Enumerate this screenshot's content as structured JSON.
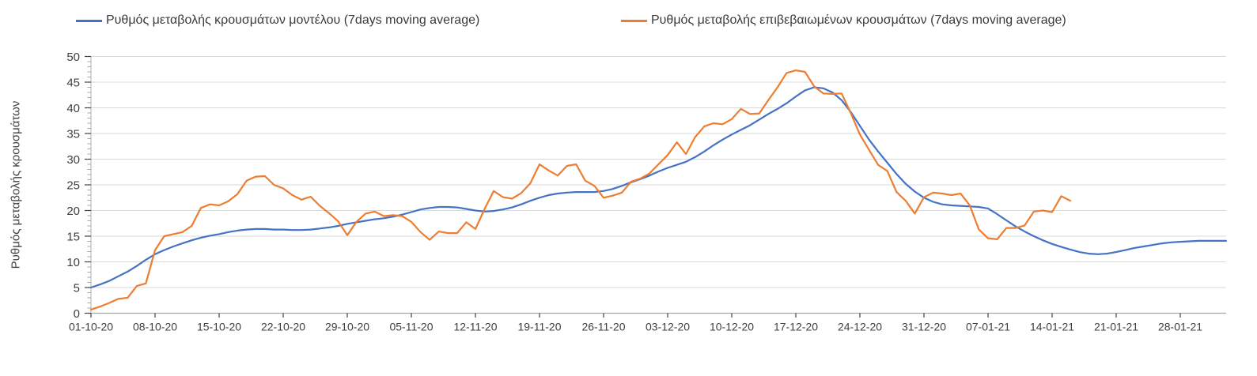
{
  "colors": {
    "model_line": "#4472c4",
    "confirmed_line": "#ed7d31",
    "gridline": "#d9d9d9",
    "axis_line": "#a6a6a6",
    "y_axis_line": "#bfbfbf",
    "major_tick": "#404040",
    "minor_tick": "#a6a6a6",
    "label_text": "#3f3f3f"
  },
  "y_axis": {
    "title": "Ρυθμός μεταβολής κρουσμάτων",
    "tick_labels": [
      "0",
      "5",
      "10",
      "15",
      "20",
      "25",
      "30",
      "35",
      "40",
      "45",
      "50"
    ]
  },
  "x_axis": {
    "tick_labels": [
      "01-10-20",
      "08-10-20",
      "15-10-20",
      "22-10-20",
      "29-10-20",
      "05-11-20",
      "12-11-20",
      "19-11-20",
      "26-11-20",
      "03-12-20",
      "10-12-20",
      "17-12-20",
      "24-12-20",
      "31-12-20",
      "07-01-21",
      "14-01-21",
      "21-01-21",
      "28-01-21"
    ]
  },
  "chart_data": {
    "type": "line",
    "title": "",
    "xlabel": "",
    "ylabel": "Ρυθμός μεταβολής κρουσμάτων",
    "ylim": [
      0,
      50
    ],
    "y_major_step": 5,
    "y_minor_step": 1,
    "grid": "horizontal",
    "legend_position": "top",
    "x_unit": "daily points starting 01-10-2020",
    "x_tick_interval_days": 7,
    "x_domain_days": [
      0,
      124
    ],
    "series": [
      {
        "name": "Ρυθμός μεταβολής κρουσμάτων μοντέλου (7days moving average)",
        "data_name": "model-line",
        "color": "#4472c4",
        "start_date": "01-10-20",
        "values": [
          5.0,
          5.6,
          6.3,
          7.2,
          8.1,
          9.2,
          10.4,
          11.5,
          12.3,
          13.0,
          13.6,
          14.2,
          14.7,
          15.1,
          15.4,
          15.8,
          16.1,
          16.3,
          16.4,
          16.4,
          16.3,
          16.3,
          16.2,
          16.2,
          16.3,
          16.5,
          16.7,
          17.0,
          17.4,
          17.7,
          18.0,
          18.3,
          18.5,
          18.8,
          19.2,
          19.7,
          20.2,
          20.5,
          20.7,
          20.7,
          20.6,
          20.3,
          20.0,
          19.8,
          19.9,
          20.2,
          20.6,
          21.2,
          21.9,
          22.5,
          23.0,
          23.3,
          23.5,
          23.6,
          23.6,
          23.6,
          23.8,
          24.2,
          24.8,
          25.5,
          26.1,
          26.8,
          27.6,
          28.3,
          28.9,
          29.5,
          30.4,
          31.5,
          32.7,
          33.8,
          34.8,
          35.7,
          36.6,
          37.7,
          38.8,
          39.8,
          40.9,
          42.2,
          43.4,
          44.0,
          43.8,
          43.0,
          41.5,
          39.2,
          36.5,
          33.8,
          31.5,
          29.3,
          27.1,
          25.2,
          23.7,
          22.5,
          21.7,
          21.2,
          21.0,
          20.9,
          20.8,
          20.7,
          20.4,
          19.3,
          18.1,
          16.9,
          15.9,
          15.0,
          14.2,
          13.5,
          12.9,
          12.4,
          11.9,
          11.6,
          11.5,
          11.6,
          11.9,
          12.3,
          12.7,
          13.0,
          13.3,
          13.6,
          13.8,
          13.9,
          14.0,
          14.1,
          14.1,
          14.1,
          14.1
        ]
      },
      {
        "name": "Ρυθμός μεταβολής επιβεβαιωμένων κρουσμάτων (7days moving average)",
        "data_name": "confirmed-line",
        "color": "#ed7d31",
        "start_date": "01-10-20",
        "values": [
          0.7,
          1.3,
          2.0,
          2.8,
          3.0,
          5.3,
          5.8,
          12.3,
          15.0,
          15.4,
          15.8,
          17.0,
          20.5,
          21.2,
          21.0,
          21.8,
          23.2,
          25.8,
          26.6,
          26.7,
          25.0,
          24.3,
          23.0,
          22.1,
          22.7,
          20.9,
          19.5,
          17.9,
          15.2,
          17.8,
          19.4,
          19.8,
          18.9,
          19.1,
          18.9,
          17.8,
          15.8,
          14.3,
          15.9,
          15.6,
          15.6,
          17.7,
          16.4,
          20.3,
          23.8,
          22.6,
          22.3,
          23.4,
          25.3,
          29.0,
          27.8,
          26.8,
          28.7,
          29.0,
          25.8,
          24.8,
          22.5,
          22.9,
          23.5,
          25.6,
          26.2,
          27.2,
          29.0,
          30.8,
          33.3,
          31.0,
          34.3,
          36.4,
          37.0,
          36.8,
          37.8,
          39.8,
          38.8,
          38.9,
          41.5,
          44.0,
          46.8,
          47.3,
          47.0,
          44.2,
          42.8,
          42.7,
          42.8,
          39.0,
          34.8,
          31.8,
          28.9,
          27.7,
          23.6,
          21.9,
          19.4,
          22.6,
          23.5,
          23.3,
          23.0,
          23.3,
          21.0,
          16.3,
          14.6,
          14.4,
          16.6,
          16.6,
          17.1,
          19.8,
          20.0,
          19.7,
          22.8,
          21.9
        ]
      }
    ]
  }
}
